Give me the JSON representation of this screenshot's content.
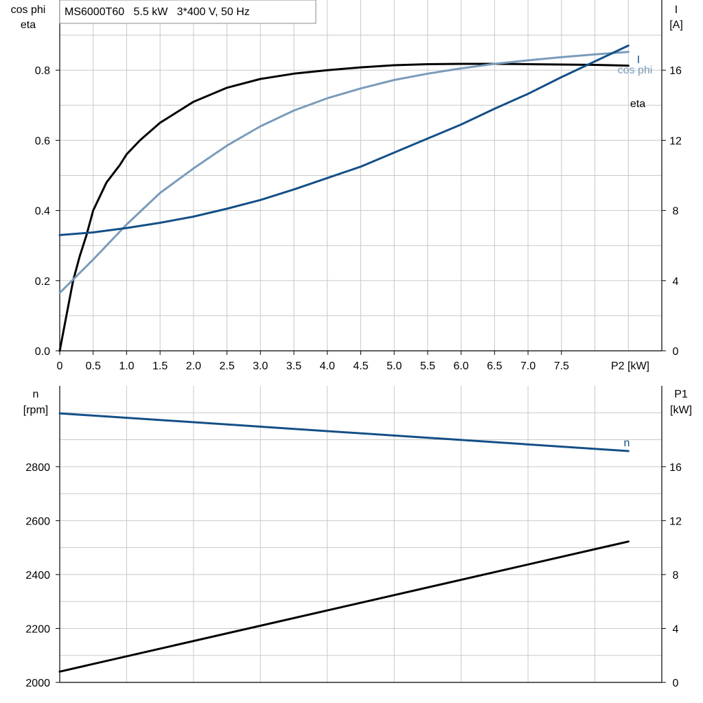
{
  "chart_data": [
    {
      "type": "line",
      "title": "MS6000T60   5.5 kW   3*400 V, 50 Hz",
      "xlabel": "P2 [kW]",
      "xlim": [
        0,
        9
      ],
      "x_ticks": [
        "0",
        "0.5",
        "1.0",
        "1.5",
        "2.0",
        "2.5",
        "3.0",
        "3.5",
        "4.0",
        "4.5",
        "5.0",
        "5.5",
        "6.0",
        "6.5",
        "7.0",
        "7.5"
      ],
      "x_tick_values": [
        0,
        0.5,
        1.0,
        1.5,
        2.0,
        2.5,
        3.0,
        3.5,
        4.0,
        4.5,
        5.0,
        5.5,
        6.0,
        6.5,
        7.0,
        7.5
      ],
      "ylabel_left": [
        "cos phi",
        "eta"
      ],
      "ylim_left": [
        0,
        1
      ],
      "y_ticks_left": [
        "0.0",
        "0.2",
        "0.4",
        "0.6",
        "0.8"
      ],
      "y_tick_values_left": [
        0,
        0.2,
        0.4,
        0.6,
        0.8
      ],
      "ylabel_right": [
        "I",
        "[A]"
      ],
      "ylim_right": [
        0,
        20
      ],
      "y_ticks_right": [
        "0",
        "4",
        "8",
        "12",
        "16"
      ],
      "y_tick_values_right": [
        0,
        4,
        8,
        12,
        16
      ],
      "grid": true,
      "series": [
        {
          "name": "eta",
          "axis": "left",
          "color": "#000000",
          "x": [
            0,
            0.1,
            0.2,
            0.3,
            0.4,
            0.5,
            0.7,
            0.9,
            1.0,
            1.2,
            1.5,
            2.0,
            2.5,
            3.0,
            3.5,
            4.0,
            4.5,
            5.0,
            5.5,
            6.0,
            6.5,
            7.0,
            7.5,
            8.0,
            8.5
          ],
          "values": [
            0.0,
            0.1,
            0.2,
            0.27,
            0.33,
            0.4,
            0.48,
            0.53,
            0.56,
            0.6,
            0.65,
            0.71,
            0.75,
            0.775,
            0.79,
            0.8,
            0.808,
            0.814,
            0.817,
            0.818,
            0.818,
            0.817,
            0.816,
            0.815,
            0.813
          ]
        },
        {
          "name": "cos phi",
          "axis": "left",
          "color": "#7a9bbb",
          "x": [
            0,
            0.5,
            1.0,
            1.5,
            2.0,
            2.5,
            3.0,
            3.5,
            4.0,
            4.5,
            5.0,
            5.5,
            6.0,
            6.5,
            7.0,
            7.5,
            8.0,
            8.5
          ],
          "values": [
            0.165,
            0.26,
            0.36,
            0.45,
            0.52,
            0.585,
            0.64,
            0.685,
            0.72,
            0.748,
            0.772,
            0.79,
            0.805,
            0.818,
            0.828,
            0.837,
            0.845,
            0.852
          ]
        },
        {
          "name": "I",
          "axis": "right",
          "color": "#134f86",
          "x": [
            0,
            0.5,
            1.0,
            1.5,
            2.0,
            2.5,
            3.0,
            3.5,
            4.0,
            4.5,
            5.0,
            5.5,
            6.0,
            6.5,
            7.0,
            7.5,
            8.0,
            8.5
          ],
          "values": [
            6.6,
            6.75,
            7.0,
            7.3,
            7.65,
            8.1,
            8.6,
            9.2,
            9.85,
            10.5,
            11.3,
            12.1,
            12.9,
            13.8,
            14.65,
            15.6,
            16.5,
            17.4
          ]
        }
      ],
      "series_labels": [
        "I",
        "cos phi",
        "eta"
      ]
    },
    {
      "type": "line",
      "xlim": [
        0,
        9
      ],
      "ylabel_left": [
        "n",
        "[rpm]"
      ],
      "ylim_left": [
        2000,
        3100
      ],
      "y_ticks_left": [
        "2000",
        "2200",
        "2400",
        "2600",
        "2800"
      ],
      "y_tick_values_left": [
        2000,
        2200,
        2400,
        2600,
        2800
      ],
      "ylabel_right": [
        "P1",
        "[kW]"
      ],
      "ylim_right": [
        0,
        22
      ],
      "y_ticks_right": [
        "0",
        "4",
        "8",
        "12",
        "16"
      ],
      "y_tick_values_right": [
        0,
        4,
        8,
        12,
        16
      ],
      "grid": true,
      "series": [
        {
          "name": "n",
          "axis": "left",
          "color": "#134f86",
          "x": [
            0,
            8.5
          ],
          "values": [
            2998,
            2858
          ]
        },
        {
          "axis": "right",
          "color": "#000000",
          "x": [
            0,
            8.5
          ],
          "values": [
            0.8,
            10.45
          ]
        }
      ],
      "series_labels": [
        "n"
      ]
    }
  ]
}
